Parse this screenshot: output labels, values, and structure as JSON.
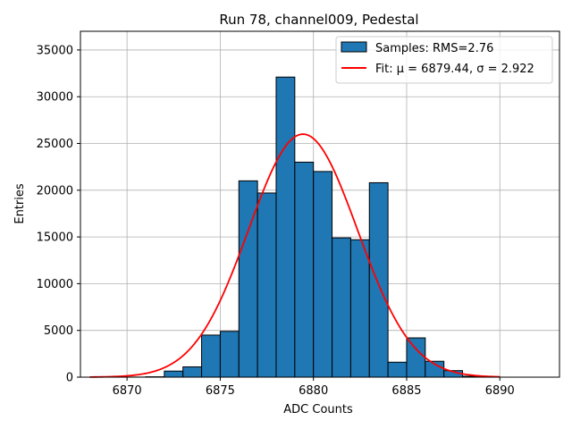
{
  "chart_data": {
    "type": "bar",
    "title": "Run 78, channel009, Pedestal",
    "xlabel": "ADC Counts",
    "ylabel": "Entries",
    "xlim": [
      6867.5,
      6893.2
    ],
    "ylim": [
      0,
      37000
    ],
    "x_ticks": [
      6870,
      6875,
      6880,
      6885,
      6890
    ],
    "y_ticks": [
      0,
      5000,
      10000,
      15000,
      20000,
      25000,
      30000,
      35000
    ],
    "grid": true,
    "legend_position": "top-right",
    "histogram": {
      "name": "Samples: RMS=2.76",
      "color": "#1f77b4",
      "edge_color": "#000000",
      "bin_edges": [
        6870,
        6871,
        6872,
        6873,
        6874,
        6875,
        6876,
        6877,
        6878,
        6879,
        6880,
        6881,
        6882,
        6883,
        6884,
        6885,
        6886,
        6887,
        6888,
        6889,
        6890
      ],
      "counts": [
        10,
        40,
        650,
        1100,
        4500,
        4900,
        21000,
        19700,
        32100,
        23000,
        22000,
        14900,
        14700,
        20800,
        1600,
        4200,
        1700,
        700,
        100,
        20
      ]
    },
    "fit": {
      "name": "Fit: μ = 6879.44, σ = 2.922",
      "color": "#ff0000",
      "mu": 6879.44,
      "sigma": 2.922,
      "amplitude": 26000,
      "x_range": [
        6868,
        6890
      ]
    }
  }
}
